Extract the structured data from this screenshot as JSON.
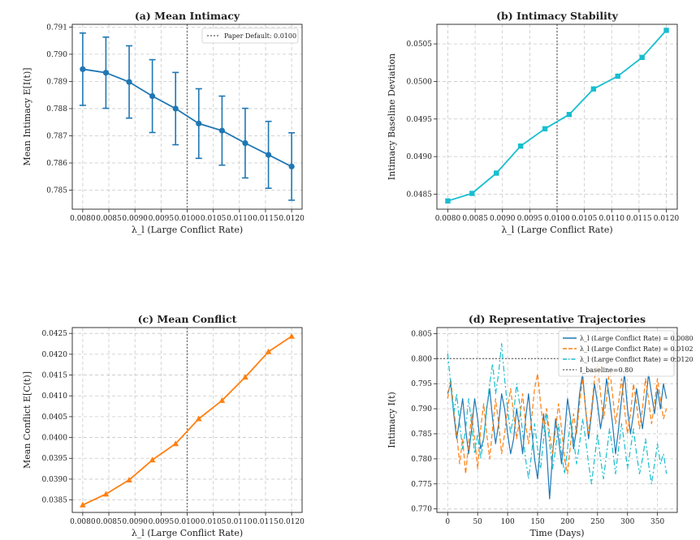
{
  "chart_data": [
    {
      "id": "a",
      "type": "line",
      "title": "(a) Mean Intimacy",
      "xlabel": "λ_l (Large Conflict Rate)",
      "ylabel": "Mean Intimacy E[I(t)]",
      "xlim": [
        0.0078,
        0.0122
      ],
      "ylim": [
        0.7843,
        0.7911
      ],
      "xticks": [
        "0.0080",
        "0.0085",
        "0.0090",
        "0.0095",
        "0.0100",
        "0.0105",
        "0.0110",
        "0.0115",
        "0.0120"
      ],
      "yticks": [
        "0.785",
        "0.786",
        "0.787",
        "0.788",
        "0.789",
        "0.790",
        "0.791"
      ],
      "grid": true,
      "legend_position": "top-right",
      "reference_line": {
        "x": 0.01,
        "label": "Paper Default: 0.0100"
      },
      "series": [
        {
          "x": [
            0.008,
            0.008444,
            0.008889,
            0.009333,
            0.009778,
            0.010222,
            0.010667,
            0.011111,
            0.011556,
            0.012
          ],
          "y": [
            0.78945,
            0.78932,
            0.78898,
            0.78846,
            0.788,
            0.78745,
            0.78719,
            0.78673,
            0.7863,
            0.78587
          ],
          "err": [
            0.00133,
            0.00131,
            0.00133,
            0.00134,
            0.00133,
            0.00128,
            0.00127,
            0.00128,
            0.00123,
            0.00124
          ],
          "color": "#1f77b4",
          "marker": "circle"
        }
      ]
    },
    {
      "id": "b",
      "type": "line",
      "title": "(b) Intimacy Stability",
      "xlabel": "λ_l (Large Conflict Rate)",
      "ylabel": "Intimacy Baseline Deviation",
      "xlim": [
        0.0078,
        0.0122
      ],
      "ylim": [
        0.0483,
        0.05076
      ],
      "xticks": [
        "0.0080",
        "0.0085",
        "0.0090",
        "0.0095",
        "0.0100",
        "0.0105",
        "0.0110",
        "0.0115",
        "0.0120"
      ],
      "yticks": [
        "0.0485",
        "0.0490",
        "0.0495",
        "0.0500",
        "0.0505"
      ],
      "grid": true,
      "reference_line": {
        "x": 0.01
      },
      "series": [
        {
          "x": [
            0.008,
            0.008444,
            0.008889,
            0.009333,
            0.009778,
            0.010222,
            0.010667,
            0.011111,
            0.011556,
            0.012
          ],
          "y": [
            0.04841,
            0.04851,
            0.04878,
            0.04914,
            0.04937,
            0.04956,
            0.0499,
            0.05007,
            0.05032,
            0.05068
          ],
          "color": "#17becf",
          "marker": "square"
        }
      ]
    },
    {
      "id": "c",
      "type": "line",
      "title": "(c) Mean Conflict",
      "xlabel": "λ_l (Large Conflict Rate)",
      "ylabel": "Mean Conflict E[C(t)]",
      "xlim": [
        0.0078,
        0.0122
      ],
      "ylim": [
        0.0382,
        0.04264
      ],
      "xticks": [
        "0.0080",
        "0.0085",
        "0.0090",
        "0.0095",
        "0.0100",
        "0.0105",
        "0.0110",
        "0.0115",
        "0.0120"
      ],
      "yticks": [
        "0.0385",
        "0.0390",
        "0.0395",
        "0.0400",
        "0.0405",
        "0.0410",
        "0.0415",
        "0.0420",
        "0.0425"
      ],
      "grid": true,
      "reference_line": {
        "x": 0.01
      },
      "series": [
        {
          "x": [
            0.008,
            0.008444,
            0.008889,
            0.009333,
            0.009778,
            0.010222,
            0.010667,
            0.011111,
            0.011556,
            0.012
          ],
          "y": [
            0.03838,
            0.03864,
            0.03898,
            0.03946,
            0.03985,
            0.04045,
            0.04089,
            0.04145,
            0.04206,
            0.04243
          ],
          "color": "#ff7f0e",
          "marker": "triangle"
        }
      ]
    },
    {
      "id": "d",
      "type": "line",
      "title": "(d) Representative Trajectories",
      "xlabel": "Time (Days)",
      "ylabel": "Intimacy I(t)",
      "xlim": [
        -18,
        383
      ],
      "ylim": [
        0.7693,
        0.8062
      ],
      "xticks": [
        "0",
        "50",
        "100",
        "150",
        "200",
        "250",
        "300",
        "350"
      ],
      "yticks": [
        "0.770",
        "0.775",
        "0.780",
        "0.785",
        "0.790",
        "0.795",
        "0.800",
        "0.805"
      ],
      "grid": true,
      "legend_position": "top-right",
      "baseline": {
        "y": 0.8,
        "label": "I_baseline=0.80"
      },
      "series": [
        {
          "name": "λ_l (Large Conflict Rate) = 0.0080",
          "color": "#1f77b4",
          "dash": "solid",
          "x": [
            0,
            5,
            10,
            15,
            20,
            25,
            30,
            35,
            40,
            45,
            50,
            55,
            60,
            65,
            70,
            75,
            80,
            85,
            90,
            95,
            100,
            105,
            110,
            115,
            120,
            125,
            130,
            135,
            140,
            145,
            150,
            155,
            160,
            165,
            170,
            175,
            180,
            185,
            190,
            195,
            200,
            205,
            210,
            215,
            220,
            225,
            230,
            235,
            240,
            245,
            250,
            255,
            260,
            265,
            270,
            275,
            280,
            285,
            290,
            295,
            300,
            305,
            310,
            315,
            320,
            325,
            330,
            335,
            340,
            345,
            350,
            355,
            360,
            365
          ],
          "y": [
            0.793,
            0.795,
            0.789,
            0.784,
            0.788,
            0.792,
            0.786,
            0.781,
            0.786,
            0.792,
            0.788,
            0.782,
            0.784,
            0.79,
            0.794,
            0.788,
            0.783,
            0.787,
            0.793,
            0.79,
            0.785,
            0.781,
            0.784,
            0.79,
            0.786,
            0.781,
            0.788,
            0.793,
            0.786,
            0.78,
            0.776,
            0.783,
            0.789,
            0.782,
            0.772,
            0.781,
            0.788,
            0.784,
            0.779,
            0.785,
            0.792,
            0.788,
            0.782,
            0.786,
            0.793,
            0.797,
            0.79,
            0.784,
            0.789,
            0.795,
            0.791,
            0.786,
            0.79,
            0.796,
            0.792,
            0.787,
            0.781,
            0.786,
            0.792,
            0.797,
            0.79,
            0.785,
            0.789,
            0.794,
            0.79,
            0.786,
            0.791,
            0.797,
            0.793,
            0.789,
            0.794,
            0.79,
            0.795,
            0.792
          ]
        },
        {
          "name": "λ_l (Large Conflict Rate) = 0.0102",
          "color": "#ff7f0e",
          "dash": "dashed",
          "x": [
            0,
            5,
            10,
            15,
            20,
            25,
            30,
            35,
            40,
            45,
            50,
            55,
            60,
            65,
            70,
            75,
            80,
            85,
            90,
            95,
            100,
            105,
            110,
            115,
            120,
            125,
            130,
            135,
            140,
            145,
            150,
            155,
            160,
            165,
            170,
            175,
            180,
            185,
            190,
            195,
            200,
            205,
            210,
            215,
            220,
            225,
            230,
            235,
            240,
            245,
            250,
            255,
            260,
            265,
            270,
            275,
            280,
            285,
            290,
            295,
            300,
            305,
            310,
            315,
            320,
            325,
            330,
            335,
            340,
            345,
            350,
            355,
            360,
            365
          ],
          "y": [
            0.792,
            0.796,
            0.79,
            0.785,
            0.779,
            0.784,
            0.777,
            0.783,
            0.789,
            0.784,
            0.778,
            0.786,
            0.791,
            0.785,
            0.78,
            0.786,
            0.792,
            0.787,
            0.781,
            0.785,
            0.79,
            0.794,
            0.789,
            0.784,
            0.788,
            0.793,
            0.787,
            0.783,
            0.788,
            0.794,
            0.797,
            0.791,
            0.786,
            0.79,
            0.785,
            0.781,
            0.786,
            0.791,
            0.786,
            0.78,
            0.777,
            0.783,
            0.789,
            0.785,
            0.791,
            0.796,
            0.79,
            0.785,
            0.79,
            0.796,
            0.799,
            0.793,
            0.788,
            0.792,
            0.798,
            0.793,
            0.787,
            0.791,
            0.796,
            0.79,
            0.785,
            0.789,
            0.795,
            0.791,
            0.786,
            0.79,
            0.796,
            0.792,
            0.787,
            0.791,
            0.796,
            0.792,
            0.788,
            0.79
          ]
        },
        {
          "name": "λ_l (Large Conflict Rate) = 0.0120",
          "color": "#17becf",
          "dash": "dashdot",
          "x": [
            0,
            5,
            10,
            15,
            20,
            25,
            30,
            35,
            40,
            45,
            50,
            55,
            60,
            65,
            70,
            75,
            80,
            85,
            90,
            95,
            100,
            105,
            110,
            115,
            120,
            125,
            130,
            135,
            140,
            145,
            150,
            155,
            160,
            165,
            170,
            175,
            180,
            185,
            190,
            195,
            200,
            205,
            210,
            215,
            220,
            225,
            230,
            235,
            240,
            245,
            250,
            255,
            260,
            265,
            270,
            275,
            280,
            285,
            290,
            295,
            300,
            305,
            310,
            315,
            320,
            325,
            330,
            335,
            340,
            345,
            350,
            355,
            360,
            365
          ],
          "y": [
            0.801,
            0.795,
            0.789,
            0.793,
            0.787,
            0.782,
            0.786,
            0.792,
            0.787,
            0.781,
            0.785,
            0.78,
            0.784,
            0.79,
            0.795,
            0.799,
            0.793,
            0.797,
            0.803,
            0.796,
            0.79,
            0.785,
            0.789,
            0.795,
            0.791,
            0.785,
            0.78,
            0.776,
            0.781,
            0.787,
            0.782,
            0.778,
            0.784,
            0.789,
            0.783,
            0.778,
            0.782,
            0.787,
            0.781,
            0.777,
            0.782,
            0.788,
            0.784,
            0.779,
            0.783,
            0.788,
            0.784,
            0.779,
            0.775,
            0.78,
            0.785,
            0.78,
            0.776,
            0.781,
            0.786,
            0.782,
            0.777,
            0.782,
            0.787,
            0.783,
            0.778,
            0.782,
            0.786,
            0.781,
            0.777,
            0.78,
            0.784,
            0.779,
            0.775,
            0.779,
            0.783,
            0.779,
            0.781,
            0.777
          ]
        }
      ]
    }
  ]
}
